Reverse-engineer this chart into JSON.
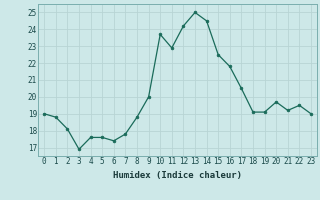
{
  "x": [
    0,
    1,
    2,
    3,
    4,
    5,
    6,
    7,
    8,
    9,
    10,
    11,
    12,
    13,
    14,
    15,
    16,
    17,
    18,
    19,
    20,
    21,
    22,
    23
  ],
  "y": [
    19.0,
    18.8,
    18.1,
    16.9,
    17.6,
    17.6,
    17.4,
    17.8,
    18.8,
    20.0,
    23.7,
    22.9,
    24.2,
    25.0,
    24.5,
    22.5,
    21.8,
    20.5,
    19.1,
    19.1,
    19.7,
    19.2,
    19.5,
    19.0
  ],
  "line_color": "#1a6b5a",
  "marker_color": "#1a6b5a",
  "bg_color": "#cde8e8",
  "grid_color": "#b8d4d4",
  "xlabel": "Humidex (Indice chaleur)",
  "xlim": [
    -0.5,
    23.5
  ],
  "ylim": [
    16.5,
    25.5
  ],
  "yticks": [
    17,
    18,
    19,
    20,
    21,
    22,
    23,
    24,
    25
  ],
  "xticks": [
    0,
    1,
    2,
    3,
    4,
    5,
    6,
    7,
    8,
    9,
    10,
    11,
    12,
    13,
    14,
    15,
    16,
    17,
    18,
    19,
    20,
    21,
    22,
    23
  ],
  "label_fontsize": 6.5,
  "tick_fontsize": 5.5
}
